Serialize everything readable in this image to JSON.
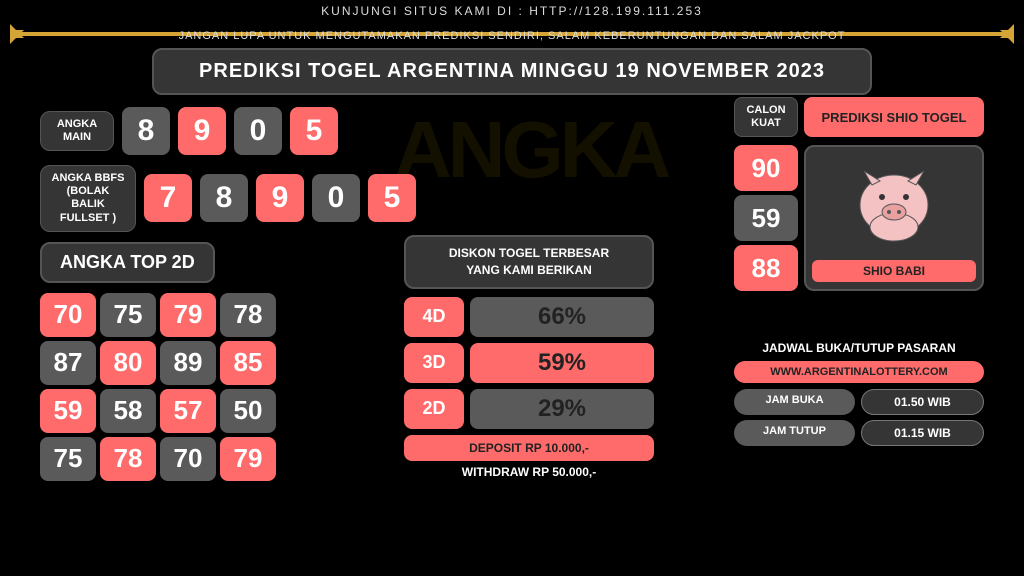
{
  "header_text": "KUNJUNGI SITUS KAMI DI : HTTP://128.199.111.253",
  "footer_text": "JANGAN LUPA UNTUK MENGUTAMAKAN PREDIKSI SENDIRI, SALAM KEBERUNTUNGAN DAN SALAM JACKPOT",
  "title": "PREDIKSI TOGEL ARGENTINA MINGGU 19 NOVEMBER 2023",
  "angka_main": {
    "label": "ANGKA\nMAIN",
    "values": [
      "8",
      "9",
      "0",
      "5"
    ],
    "colors": [
      "grey",
      "red",
      "grey",
      "red"
    ]
  },
  "angka_bbfs": {
    "label": "ANGKA BBFS\n(BOLAK BALIK\nFULLSET )",
    "values": [
      "7",
      "8",
      "9",
      "0",
      "5"
    ],
    "colors": [
      "red",
      "grey",
      "red",
      "grey",
      "red"
    ]
  },
  "top2d": {
    "title": "ANGKA TOP 2D",
    "values": [
      "70",
      "75",
      "79",
      "78",
      "87",
      "80",
      "89",
      "85",
      "59",
      "58",
      "57",
      "50",
      "75",
      "78",
      "70",
      "79"
    ],
    "colors": [
      "red",
      "grey",
      "red",
      "grey",
      "grey",
      "red",
      "grey",
      "red",
      "red",
      "grey",
      "red",
      "grey",
      "grey",
      "red",
      "grey",
      "red"
    ]
  },
  "diskon": {
    "title": "DISKON TOGEL TERBESAR\nYANG KAMI BERIKAN",
    "rows": [
      {
        "label": "4D",
        "value": "66%",
        "style": "grey"
      },
      {
        "label": "3D",
        "value": "59%",
        "style": "red"
      },
      {
        "label": "2D",
        "value": "29%",
        "style": "grey"
      }
    ],
    "deposit": "DEPOSIT RP 10.000,-",
    "withdraw": "WITHDRAW RP 50.000,-"
  },
  "calon": {
    "label": "CALON\nKUAT",
    "shio_button": "PREDIKSI SHIO TOGEL",
    "values": [
      "90",
      "59",
      "88"
    ],
    "shio_name": "SHIO BABI"
  },
  "jadwal": {
    "title": "JADWAL BUKA/TUTUP PASARAN",
    "site": "WWW.ARGENTINALOTTERY.COM",
    "buka_label": "JAM BUKA",
    "buka_value": "01.50 WIB",
    "tutup_label": "JAM TUTUP",
    "tutup_value": "01.15 WIB"
  }
}
